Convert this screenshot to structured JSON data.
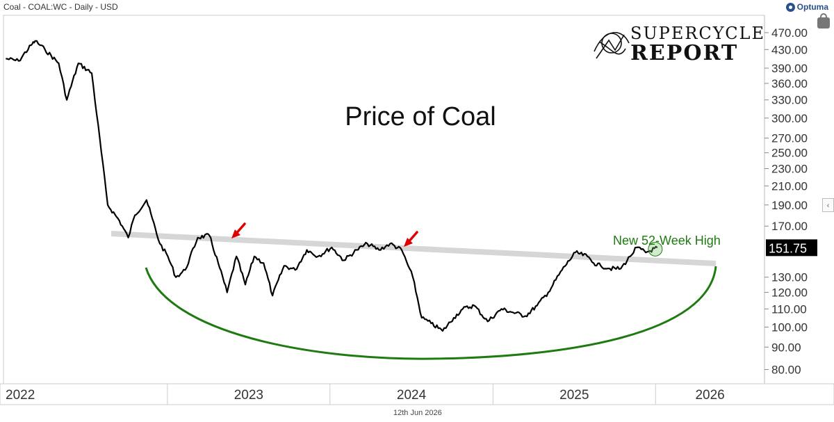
{
  "header": {
    "title": "Coal - COAL:WC - Daily - USD",
    "brand": "Optuma",
    "brand_color": "#2a4f8a"
  },
  "watermark": {
    "line1": "SUPERCYCLE",
    "line2": "REPORT"
  },
  "footer": {
    "date": "12th Jun 2026"
  },
  "icons": {
    "lock": "lock-icon",
    "scroll": "chevron-left-icon"
  },
  "chart_data": {
    "type": "line",
    "title": "Price of Coal",
    "scale": "log",
    "ylim": [
      77,
      500
    ],
    "y_ticks": [
      "470.00",
      "430.00",
      "390.00",
      "360.00",
      "330.00",
      "300.00",
      "270.00",
      "250.00",
      "230.00",
      "210.00",
      "190.00",
      "170.00",
      "130.00",
      "120.00",
      "110.00",
      "100.00",
      "90.00",
      "80.00"
    ],
    "x_ticks": [
      "2022",
      "2023",
      "2024",
      "2025",
      "2026"
    ],
    "last_value": "151.75",
    "annotation": "New 52-Week High",
    "colors": {
      "line": "#000000",
      "resistance": "#d6d6d6",
      "arc": "#1f7a12",
      "arrow": "#e00000",
      "annotation": "#1f7a12",
      "last_label_bg": "#000000"
    },
    "series": [
      {
        "x": [
          "2022-01-03",
          "2022-02-01",
          "2022-03-01",
          "2022-03-10",
          "2022-04-01",
          "2022-05-02",
          "2022-05-20",
          "2022-06-15",
          "2022-07-15",
          "2022-08-20",
          "2022-09-15",
          "2022-10-05",
          "2022-10-20",
          "2022-11-15",
          "2022-12-15",
          "2023-01-02",
          "2023-01-20",
          "2023-02-10",
          "2023-03-10",
          "2023-04-05",
          "2023-04-25",
          "2023-05-15",
          "2023-06-05",
          "2023-06-25",
          "2023-07-15",
          "2023-08-05",
          "2023-08-25",
          "2023-09-20",
          "2023-10-15",
          "2023-11-10",
          "2023-12-05",
          "2024-01-05",
          "2024-02-01",
          "2024-03-01",
          "2024-03-25",
          "2024-04-20",
          "2024-05-15",
          "2024-06-10",
          "2024-07-05",
          "2024-07-25",
          "2024-08-15",
          "2024-09-10",
          "2024-10-05",
          "2024-10-25",
          "2024-11-20",
          "2024-12-20",
          "2025-01-20",
          "2025-02-15",
          "2025-03-15",
          "2025-04-10",
          "2025-05-05",
          "2025-06-05",
          "2025-07-05",
          "2025-08-01",
          "2025-08-15",
          "2025-08-31",
          "2025-09-20",
          "2025-10-15",
          "2025-11-05",
          "2025-11-20",
          "2025-12-10",
          "2026-01-05"
        ],
        "y": [
          410,
          405,
          440,
          450,
          430,
          400,
          330,
          400,
          380,
          190,
          175,
          160,
          180,
          195,
          155,
          145,
          130,
          135,
          160,
          162,
          140,
          120,
          145,
          125,
          145,
          140,
          118,
          138,
          135,
          150,
          145,
          152,
          142,
          150,
          155,
          150,
          155,
          150,
          130,
          105,
          102,
          98,
          105,
          110,
          112,
          103,
          110,
          108,
          106,
          112,
          120,
          135,
          148,
          145,
          140,
          138,
          136,
          136,
          145,
          152,
          148,
          151.75
        ]
      }
    ]
  }
}
